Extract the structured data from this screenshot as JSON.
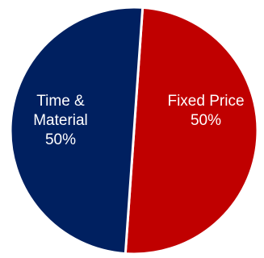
{
  "chart_data": {
    "type": "pie",
    "categories": [
      "Fixed Price",
      "Time & Material"
    ],
    "values": [
      50,
      50
    ],
    "colors": [
      "#C00000",
      "#002060"
    ],
    "labels": [
      {
        "lines": [
          "Fixed Price",
          "50%"
        ]
      },
      {
        "lines": [
          "Time &",
          "Material",
          "50%"
        ]
      }
    ]
  }
}
